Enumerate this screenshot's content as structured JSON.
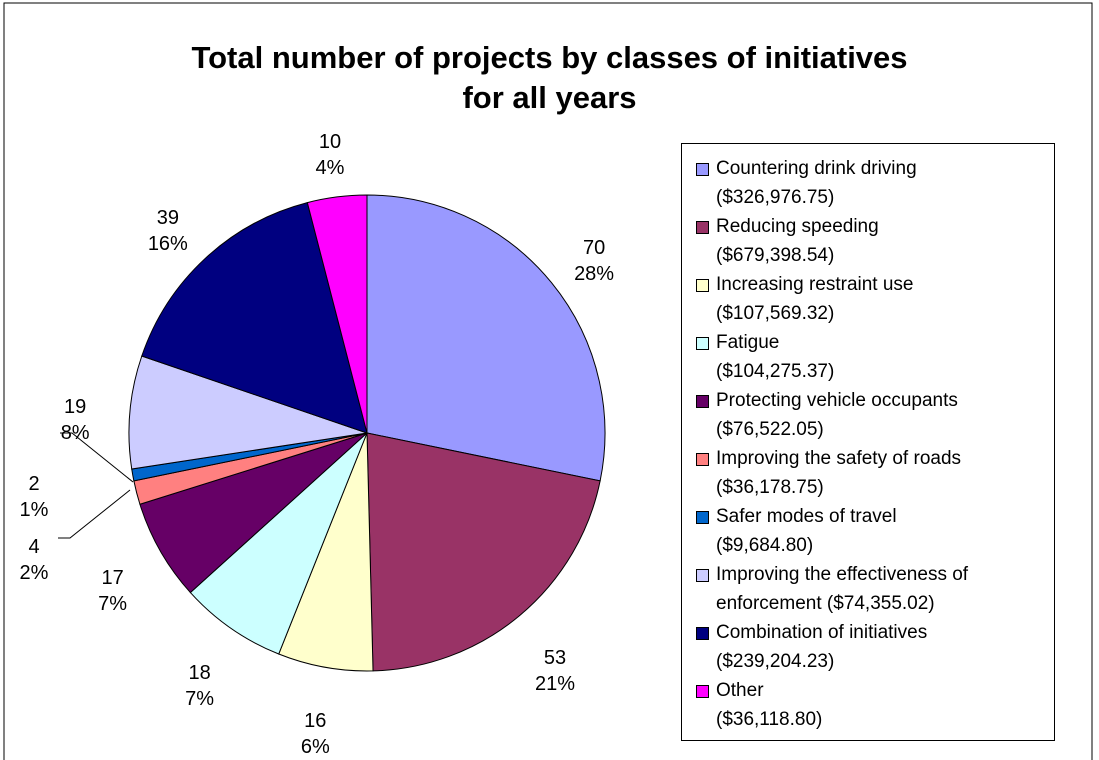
{
  "chart_data": {
    "type": "pie",
    "title": "Total number of projects by classes of initiatives\nfor all years",
    "series": [
      {
        "names": [
          "Countering drink driving\n($326,976.75)",
          "Reducing speeding\n($679,398.54)",
          "Increasing restraint use\n($107,569.32)",
          "Fatigue\n($104,275.37)",
          "Protecting vehicle occupants\n($76,522.05)",
          "Improving the safety of roads\n($36,178.75)",
          "Safer modes of travel\n($9,684.80)",
          "Improving the effectiveness of\nenforcement ($74,355.02)",
          "Combination of initiatives\n($239,204.23)",
          "Other\n($36,118.80)"
        ],
        "values": [
          70,
          53,
          16,
          18,
          17,
          4,
          2,
          19,
          39,
          10
        ],
        "percent_labels": [
          "28%",
          "21%",
          "6%",
          "7%",
          "7%",
          "2%",
          "1%",
          "8%",
          "16%",
          "4%"
        ],
        "colors": [
          "#9999ff",
          "#993366",
          "#ffffcc",
          "#ccffff",
          "#660066",
          "#ff8080",
          "#0066cc",
          "#ccccff",
          "#000080",
          "#ff00ff"
        ]
      }
    ],
    "legend": "right"
  }
}
